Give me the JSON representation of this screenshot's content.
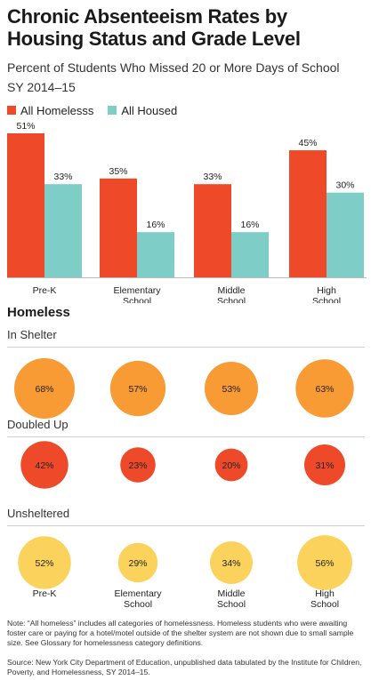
{
  "title": "Chronic Absenteeism Rates by Housing Status and Grade Level",
  "subtitle_line1": "Percent of Students Who Missed 20 or More Days of School",
  "subtitle_line2": "SY 2014–15",
  "colors": {
    "homeless": "#ee4a2a",
    "housed": "#7ecdc6",
    "in_shelter": "#f89b35",
    "doubled_up": "#ee4a2a",
    "unsheltered": "#fbd35c"
  },
  "chart_data": [
    {
      "type": "bar",
      "categories": [
        "Pre-K",
        "Elementary School",
        "Middle School",
        "High School"
      ],
      "category_lines": [
        [
          "Pre-K"
        ],
        [
          "Elementary",
          "School"
        ],
        [
          "Middle",
          "School"
        ],
        [
          "High",
          "School"
        ]
      ],
      "series": [
        {
          "name": "All Homelesss",
          "values": [
            51,
            35,
            33,
            45
          ],
          "labels": [
            "51%",
            "35%",
            "33%",
            "45%"
          ]
        },
        {
          "name": "All Housed",
          "values": [
            33,
            16,
            16,
            30
          ],
          "labels": [
            "33%",
            "16%",
            "16%",
            "30%"
          ]
        }
      ],
      "ylim": [
        0,
        51
      ],
      "grid": false
    },
    {
      "type": "scatter",
      "categories": [
        "Pre-K",
        "Elementary School",
        "Middle School",
        "High School"
      ],
      "category_lines": [
        [
          "Pre-K"
        ],
        [
          "Elementary",
          "School"
        ],
        [
          "Middle",
          "School"
        ],
        [
          "High",
          "School"
        ]
      ],
      "title": "Homeless",
      "groups": [
        {
          "name": "In Shelter",
          "values": [
            68,
            57,
            53,
            63
          ],
          "labels": [
            "68%",
            "57%",
            "53%",
            "63%"
          ]
        },
        {
          "name": "Doubled Up",
          "values": [
            42,
            23,
            20,
            31
          ],
          "labels": [
            "42%",
            "23%",
            "20%",
            "31%"
          ]
        },
        {
          "name": "Unsheltered",
          "values": [
            52,
            29,
            34,
            56
          ],
          "labels": [
            "52%",
            "29%",
            "34%",
            "56%"
          ]
        }
      ]
    }
  ],
  "note": "Note: “All homeless” includes all categories of homelessness. Homeless students who were awaiting foster care or paying for a hotel/motel outside of the shelter system are not shown due to small sample size. See Glossary for homelessness category definitions.",
  "source": "Source: New York City Department of Education, unpublished data tabulated by the Institute for Children, Poverty, and Homelessness, SY 2014–15."
}
